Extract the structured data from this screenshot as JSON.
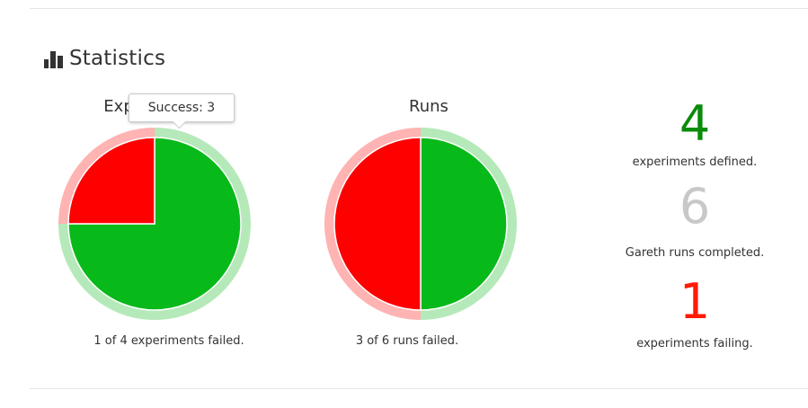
{
  "header": {
    "title": "Statistics"
  },
  "tooltip": {
    "text": "Success: 3"
  },
  "charts": {
    "experiments": {
      "title": "Experiments",
      "caption": "1 of 4 experiments failed."
    },
    "runs": {
      "title": "Runs",
      "caption": "3 of 6 runs failed."
    }
  },
  "stats": {
    "defined": {
      "value": "4",
      "label": "experiments defined."
    },
    "completed": {
      "value": "6",
      "label": "Gareth runs completed."
    },
    "failing": {
      "value": "1",
      "label": "experiments failing."
    }
  },
  "colors": {
    "success": "#08b91a",
    "failed": "#fe0000",
    "success_ring": "#b5e9b9",
    "failed_ring": "#ffb3b3",
    "defined_number": "#0a8b0a",
    "completed_number": "#c8c8c8",
    "failing_number": "#ff1a00"
  },
  "chart_data": [
    {
      "type": "pie",
      "title": "Experiments",
      "categories": [
        "Success",
        "Failed"
      ],
      "values": [
        3,
        1
      ]
    },
    {
      "type": "pie",
      "title": "Runs",
      "categories": [
        "Success",
        "Failed"
      ],
      "values": [
        3,
        3
      ]
    }
  ]
}
